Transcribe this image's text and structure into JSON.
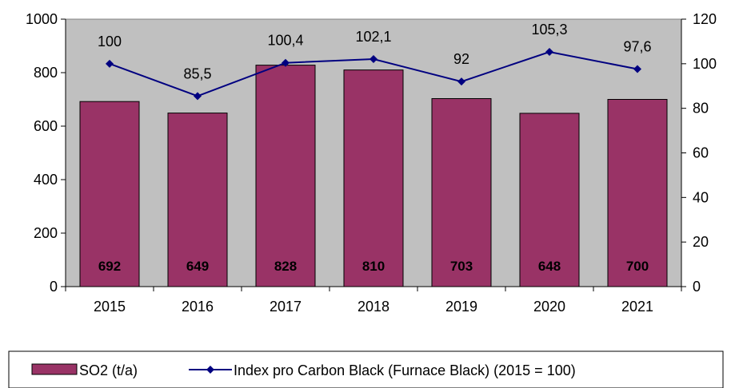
{
  "chart_data": {
    "type": "bar",
    "categories": [
      "2015",
      "2016",
      "2017",
      "2018",
      "2019",
      "2020",
      "2021"
    ],
    "series": [
      {
        "name": "SO2 (t/a)",
        "type": "bar",
        "axis": "left",
        "values": [
          692,
          649,
          828,
          810,
          703,
          648,
          700
        ],
        "labels": [
          "692",
          "649",
          "828",
          "810",
          "703",
          "648",
          "700"
        ],
        "color": "#993366"
      },
      {
        "name": "Index pro Carbon Black (Furnace Black) (2015 = 100)",
        "type": "line",
        "axis": "right",
        "values": [
          100,
          85.5,
          100.4,
          102.1,
          92,
          105.3,
          97.6
        ],
        "labels": [
          "100",
          "85,5",
          "100,4",
          "102,1",
          "92",
          "105,3",
          "97,6"
        ],
        "color": "#000080"
      }
    ],
    "ylim_left": [
      0,
      1000
    ],
    "yticks_left": [
      "0",
      "200",
      "400",
      "600",
      "800",
      "1000"
    ],
    "ylim_right": [
      0,
      120
    ],
    "yticks_right": [
      "0",
      "20",
      "40",
      "60",
      "80",
      "100",
      "120"
    ],
    "plot_background": "#c0c0c0",
    "grid": false,
    "legend_position": "bottom"
  }
}
